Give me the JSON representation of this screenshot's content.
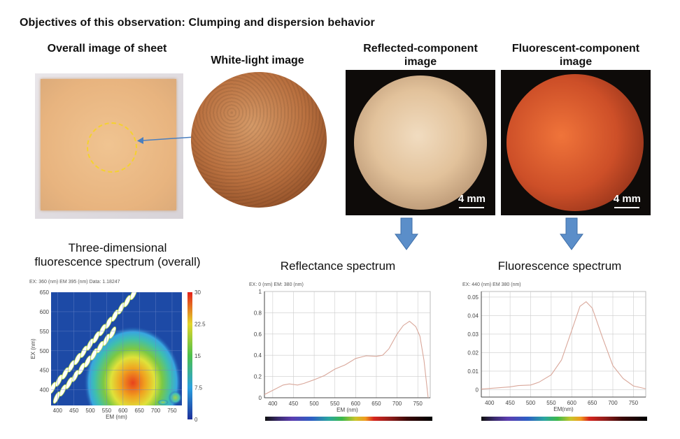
{
  "title": "Objectives of this observation: Clumping and dispersion behavior",
  "panels": {
    "sheet": {
      "label": "Overall image of sheet"
    },
    "white_light": {
      "label": "White-light image"
    },
    "reflected": {
      "label": "Reflected-component image",
      "scale": "4 mm"
    },
    "fluorescent": {
      "label": "Fluorescent-component image",
      "scale": "4 mm"
    }
  },
  "colors": {
    "arrow": "#5b8ec9",
    "curve": "#d9a79a",
    "dash": "#f5d22e"
  },
  "chart_data": [
    {
      "type": "heatmap",
      "title": "Three-dimensional fluorescence spectrum (overall)",
      "header": "EX: 360 (nm) EM 395 (nm) Data: 1.18247",
      "xlabel": "EM (nm)",
      "ylabel": "EX (nm)",
      "xlim": [
        380,
        780
      ],
      "ylim": [
        360,
        650
      ],
      "xticks": [
        400,
        450,
        500,
        550,
        600,
        650,
        700,
        750
      ],
      "yticks": [
        400,
        450,
        500,
        550,
        600,
        650
      ],
      "colorbar": {
        "range": [
          0,
          30
        ],
        "ticks": [
          "30",
          "22.5",
          "15",
          "7.5",
          "0"
        ]
      },
      "peak": {
        "em": 630,
        "ex": 450,
        "value": 27
      }
    },
    {
      "type": "line",
      "title": "Reflectance spectrum",
      "header": "EX: 0 (nm) EM: 380 (nm)",
      "xlabel": "EM (nm)",
      "ylabel": "",
      "xlim": [
        380,
        780
      ],
      "ylim": [
        0,
        1
      ],
      "xticks": [
        400,
        450,
        500,
        550,
        600,
        650,
        700,
        750
      ],
      "yticks": [
        "0",
        "0.2",
        "0.4",
        "0.6",
        "0.8",
        "1"
      ],
      "x": [
        380,
        400,
        425,
        440,
        460,
        475,
        500,
        525,
        550,
        575,
        600,
        625,
        650,
        665,
        680,
        700,
        715,
        730,
        745,
        755,
        765,
        775
      ],
      "y": [
        0.03,
        0.07,
        0.12,
        0.13,
        0.12,
        0.135,
        0.17,
        0.21,
        0.27,
        0.31,
        0.37,
        0.395,
        0.39,
        0.4,
        0.46,
        0.6,
        0.68,
        0.72,
        0.67,
        0.58,
        0.35,
        0.0
      ]
    },
    {
      "type": "line",
      "title": "Fluorescence spectrum",
      "header": "EX: 440 (nm) EM 380 (nm)",
      "xlabel": "EM(nm)",
      "ylabel": "",
      "xlim": [
        380,
        780
      ],
      "ylim": [
        -0.004,
        0.053
      ],
      "xticks": [
        400,
        450,
        500,
        550,
        600,
        650,
        700,
        750
      ],
      "yticks": [
        "0",
        "0.01",
        "0.02",
        "0.03",
        "0.04",
        "0.05"
      ],
      "x": [
        380,
        420,
        450,
        470,
        500,
        520,
        550,
        575,
        600,
        620,
        635,
        650,
        675,
        700,
        725,
        750,
        780
      ],
      "y": [
        0.0003,
        0.001,
        0.0015,
        0.0022,
        0.0025,
        0.004,
        0.008,
        0.016,
        0.032,
        0.045,
        0.0475,
        0.044,
        0.028,
        0.013,
        0.006,
        0.002,
        0.0005
      ]
    }
  ]
}
